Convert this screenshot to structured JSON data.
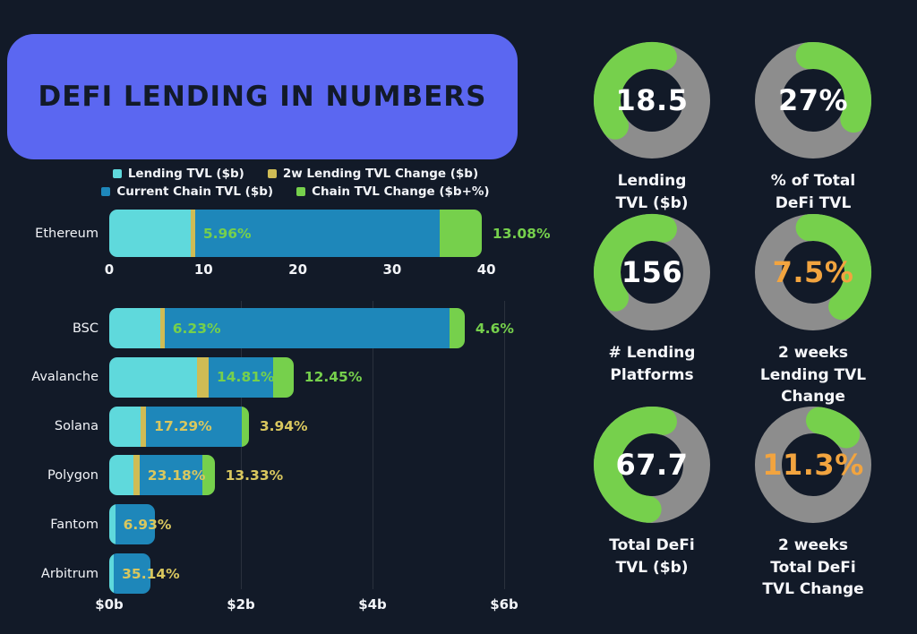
{
  "title": {
    "text": "DEFI LENDING IN NUMBERS"
  },
  "colors": {
    "bg": "#121a28",
    "accent": "#5b67f1",
    "cyan": "#5fd9dc",
    "gold": "#cfbc55",
    "blue": "#1e87ba",
    "green": "#76d04c",
    "labelgold": "#d9c75e",
    "gray_ring": "#8d8d8d",
    "orange": "#f2a43f",
    "text": "#ffffff"
  },
  "legend": {
    "items": [
      {
        "label": "Lending TVL ($b)",
        "color": "cyan"
      },
      {
        "label": "2w Lending TVL Change ($b)",
        "color": "gold"
      },
      {
        "label": "Current Chain TVL ($b)",
        "color": "blue"
      },
      {
        "label": "Chain TVL Change ($b+%)",
        "color": "green"
      }
    ]
  },
  "chart_data": [
    {
      "type": "bar",
      "title": "Ethereum lending vs chain TVL",
      "stacked": true,
      "orientation": "horizontal",
      "unit": "$b",
      "xlim": [
        0,
        40
      ],
      "grid": false,
      "xticks": [
        {
          "label": "0",
          "value": 0
        },
        {
          "label": "10",
          "value": 10
        },
        {
          "label": "20",
          "value": 20
        },
        {
          "label": "30",
          "value": 30
        },
        {
          "label": "40",
          "value": 40
        }
      ],
      "series_names": [
        "Lending TVL ($b)",
        "2w Lending TVL Change ($b)",
        "Current Chain TVL ($b)",
        "Chain TVL Change ($b+%)"
      ],
      "rows": [
        {
          "name": "Ethereum",
          "lending_tvl": 8.6,
          "lending_change": 0.5,
          "chain_tvl": 25.9,
          "chain_change": 4.5,
          "inner_label": "5.96%",
          "outer_label": "13.08%",
          "label_color": "green"
        }
      ]
    },
    {
      "type": "bar",
      "title": "Other chains lending vs chain TVL",
      "stacked": true,
      "orientation": "horizontal",
      "unit": "$b",
      "xlim": [
        0,
        6.2
      ],
      "grid": true,
      "xticks": [
        {
          "label": "$0b",
          "value": 0
        },
        {
          "label": "$2b",
          "value": 2
        },
        {
          "label": "$4b",
          "value": 4
        },
        {
          "label": "$6b",
          "value": 6
        }
      ],
      "series_names": [
        "Lending TVL ($b)",
        "2w Lending TVL Change ($b)",
        "Current Chain TVL ($b)",
        "Chain TVL Change ($b+%)"
      ],
      "rows": [
        {
          "name": "BSC",
          "lending_tvl": 0.78,
          "lending_change": 0.06,
          "chain_tvl": 4.33,
          "chain_change": 0.23,
          "inner_label": "6.23%",
          "outer_label": "4.6%",
          "label_color": "green"
        },
        {
          "name": "Avalanche",
          "lending_tvl": 1.33,
          "lending_change": 0.18,
          "chain_tvl": 0.98,
          "chain_change": 0.31,
          "inner_label": "14.81%",
          "outer_label": "12.45%",
          "label_color": "green"
        },
        {
          "name": "Solana",
          "lending_tvl": 0.47,
          "lending_change": 0.09,
          "chain_tvl": 1.46,
          "chain_change": 0.1,
          "inner_label": "17.29%",
          "outer_label": "3.94%",
          "label_color": "gold"
        },
        {
          "name": "Polygon",
          "lending_tvl": 0.37,
          "lending_change": 0.09,
          "chain_tvl": 0.96,
          "chain_change": 0.18,
          "inner_label": "23.18%",
          "outer_label": "13.33%",
          "label_color": "gold"
        },
        {
          "name": "Fantom",
          "lending_tvl": 0.09,
          "lending_change": 0,
          "chain_tvl": 0.6,
          "chain_change": 0,
          "inner_label": "6.93%",
          "outer_label": "",
          "label_color": "gold"
        },
        {
          "name": "Arbitrum",
          "lending_tvl": 0.07,
          "lending_change": 0,
          "chain_tvl": 0.56,
          "chain_change": 0,
          "inner_label": "35.14%",
          "outer_label": "",
          "label_color": "gold"
        }
      ]
    },
    {
      "type": "donut",
      "title": "DeFi lending key stats",
      "items": [
        {
          "value": "18.5",
          "caption_lines": [
            "Lending",
            "TVL ($b)"
          ],
          "value_color": "white",
          "arc_start_deg": 235,
          "arc_end_deg": 375,
          "fill_fraction": 0.39
        },
        {
          "value": "27%",
          "caption_lines": [
            "% of Total",
            "DeFi TVL"
          ],
          "value_color": "white",
          "arc_start_deg": -5,
          "arc_end_deg": 115,
          "fill_fraction": 0.33
        },
        {
          "value": "156",
          "caption_lines": [
            "# Lending",
            "Platforms"
          ],
          "value_color": "white",
          "arc_start_deg": 235,
          "arc_end_deg": 375,
          "fill_fraction": 0.39
        },
        {
          "value": "7.5%",
          "caption_lines": [
            "2 weeks",
            "Lending TVL",
            "Change"
          ],
          "value_color": "orange",
          "arc_start_deg": -5,
          "arc_end_deg": 140,
          "fill_fraction": 0.4
        },
        {
          "value": "67.7",
          "caption_lines": [
            "Total DeFi",
            "TVL ($b)"
          ],
          "value_color": "white",
          "arc_start_deg": 185,
          "arc_end_deg": 375,
          "fill_fraction": 0.53
        },
        {
          "value": "11.3%",
          "caption_lines": [
            "2 weeks",
            "Total DeFi",
            "TVL Change"
          ],
          "value_color": "orange",
          "arc_start_deg": 8,
          "arc_end_deg": 48,
          "fill_fraction": 0.11
        }
      ]
    }
  ]
}
